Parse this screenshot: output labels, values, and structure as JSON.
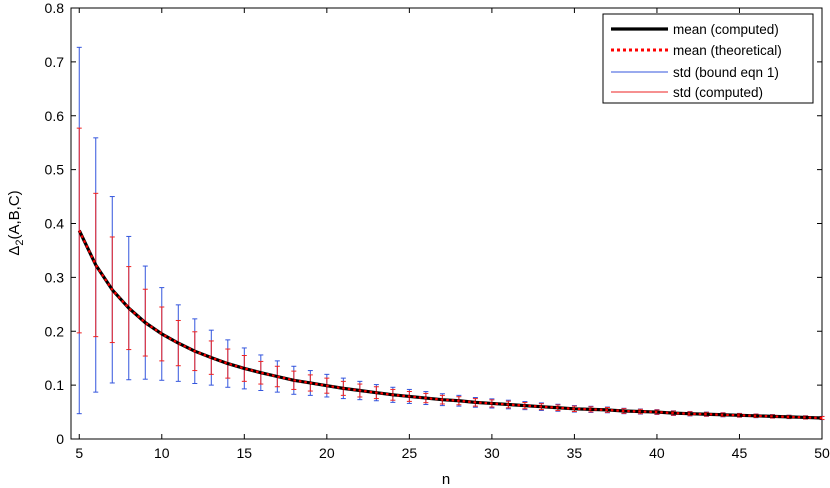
{
  "chart_data": {
    "type": "line",
    "xlabel": "n",
    "ylabel_main": "Δ",
    "ylabel_sub": "2",
    "ylabel_rest": "(A,B,C)",
    "xlim": [
      4.5,
      50
    ],
    "ylim": [
      0,
      0.8
    ],
    "xticks": [
      5,
      10,
      15,
      20,
      25,
      30,
      35,
      40,
      45,
      50
    ],
    "yticks": [
      0,
      0.1,
      0.2,
      0.3,
      0.4,
      0.5,
      0.6,
      0.7,
      0.8
    ],
    "grid": false,
    "legend_position": "top-right",
    "x": [
      5,
      6,
      7,
      8,
      9,
      10,
      11,
      12,
      13,
      14,
      15,
      16,
      17,
      18,
      19,
      20,
      21,
      22,
      23,
      24,
      25,
      26,
      27,
      28,
      29,
      30,
      31,
      32,
      33,
      34,
      35,
      36,
      37,
      38,
      39,
      40,
      41,
      42,
      43,
      44,
      45,
      46,
      47,
      48,
      49,
      50
    ],
    "series": [
      {
        "name": "mean (computed)",
        "style": "solid-thick",
        "color": "#000000",
        "values": [
          0.387,
          0.323,
          0.277,
          0.243,
          0.216,
          0.195,
          0.178,
          0.163,
          0.151,
          0.14,
          0.131,
          0.123,
          0.116,
          0.109,
          0.104,
          0.099,
          0.094,
          0.09,
          0.086,
          0.082,
          0.079,
          0.076,
          0.073,
          0.071,
          0.068,
          0.066,
          0.064,
          0.062,
          0.06,
          0.058,
          0.056,
          0.055,
          0.054,
          0.052,
          0.051,
          0.05,
          0.048,
          0.047,
          0.046,
          0.045,
          0.044,
          0.043,
          0.042,
          0.041,
          0.04,
          0.039
        ]
      },
      {
        "name": "mean (theoretical)",
        "style": "dotted",
        "color": "#ff0000",
        "values": [
          0.387,
          0.323,
          0.277,
          0.243,
          0.216,
          0.195,
          0.178,
          0.163,
          0.151,
          0.14,
          0.131,
          0.123,
          0.116,
          0.109,
          0.104,
          0.099,
          0.094,
          0.09,
          0.086,
          0.082,
          0.079,
          0.076,
          0.073,
          0.071,
          0.068,
          0.066,
          0.064,
          0.062,
          0.06,
          0.058,
          0.056,
          0.055,
          0.054,
          0.052,
          0.051,
          0.05,
          0.048,
          0.047,
          0.046,
          0.045,
          0.044,
          0.043,
          0.042,
          0.041,
          0.04,
          0.039
        ]
      },
      {
        "name": "std (bound eqn 1)",
        "style": "errorbar",
        "color": "#3355dd",
        "values": [
          0.34,
          0.236,
          0.173,
          0.133,
          0.105,
          0.086,
          0.071,
          0.06,
          0.051,
          0.044,
          0.038,
          0.033,
          0.029,
          0.026,
          0.023,
          0.021,
          0.019,
          0.017,
          0.015,
          0.014,
          0.013,
          0.012,
          0.011,
          0.01,
          0.009,
          0.0085,
          0.008,
          0.0075,
          0.007,
          0.0065,
          0.006,
          0.0057,
          0.0053,
          0.005,
          0.0047,
          0.0045,
          0.0043,
          0.0041,
          0.0039,
          0.0037,
          0.0035,
          0.0034,
          0.0032,
          0.0031,
          0.003,
          0.0029
        ]
      },
      {
        "name": "std (computed)",
        "style": "errorbar",
        "color": "#ee2222",
        "values": [
          0.19,
          0.133,
          0.098,
          0.077,
          0.062,
          0.05,
          0.042,
          0.036,
          0.031,
          0.027,
          0.024,
          0.021,
          0.019,
          0.017,
          0.015,
          0.014,
          0.013,
          0.012,
          0.011,
          0.01,
          0.0092,
          0.0086,
          0.008,
          0.0075,
          0.007,
          0.0066,
          0.0062,
          0.0058,
          0.0055,
          0.0052,
          0.005,
          0.0047,
          0.0045,
          0.0043,
          0.0041,
          0.0039,
          0.0038,
          0.0036,
          0.0035,
          0.0034,
          0.0032,
          0.0031,
          0.003,
          0.0029,
          0.0028,
          0.0027
        ]
      }
    ]
  }
}
